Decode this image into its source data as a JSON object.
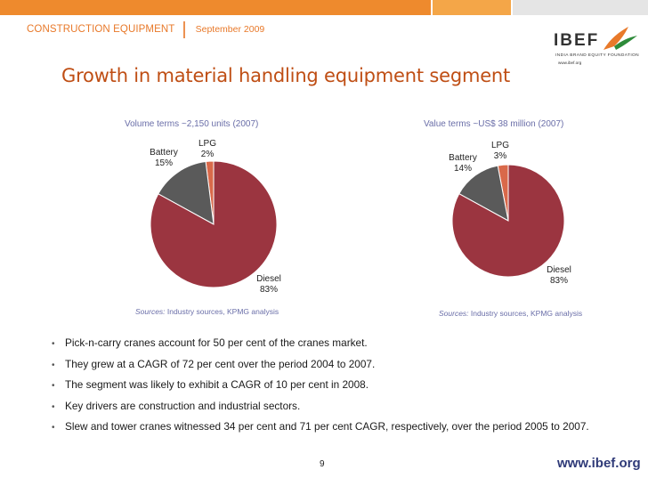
{
  "header": {
    "category": "CONSTRUCTION EQUIPMENT",
    "date": "September 2009",
    "accent": "#e8792a"
  },
  "logo": {
    "wordmark": "IBEF",
    "tagline": "INDIA BRAND EQUITY FOUNDATION",
    "url": "www.ibef.org"
  },
  "title": "Growth in material handling equipment segment",
  "chart_data": [
    {
      "type": "pie",
      "title": "Volume terms ~2,150 units (2007)",
      "labels": [
        "Diesel",
        "Battery",
        "LPG"
      ],
      "values": [
        83,
        15,
        2
      ],
      "value_labels": [
        "83%",
        "15%",
        "2%"
      ],
      "colors": [
        "#9b3540",
        "#5a5a5a",
        "#d9694a"
      ],
      "source_label": "Sources:",
      "source_text": "Industry sources, KPMG analysis"
    },
    {
      "type": "pie",
      "title": "Value terms ~US$ 38 million (2007)",
      "labels": [
        "Diesel",
        "Battery",
        "LPG"
      ],
      "values": [
        83,
        14,
        3
      ],
      "value_labels": [
        "83%",
        "14%",
        "3%"
      ],
      "colors": [
        "#9b3540",
        "#5a5a5a",
        "#d9694a"
      ],
      "source_label": "Sources:",
      "source_text": "Industry sources, KPMG analysis"
    }
  ],
  "bullets": [
    "Pick-n-carry cranes account for 50 per cent of the cranes market.",
    "They grew at a CAGR of 72 per cent over the period 2004 to 2007.",
    "The segment was likely to exhibit a CAGR of 10 per cent in 2008.",
    "Key drivers are construction and industrial sectors.",
    "Slew and tower cranes witnessed 34 per cent and 71 per cent CAGR, respectively, over the period 2005 to 2007."
  ],
  "footer": {
    "page": "9",
    "url": "www.ibef.org"
  }
}
